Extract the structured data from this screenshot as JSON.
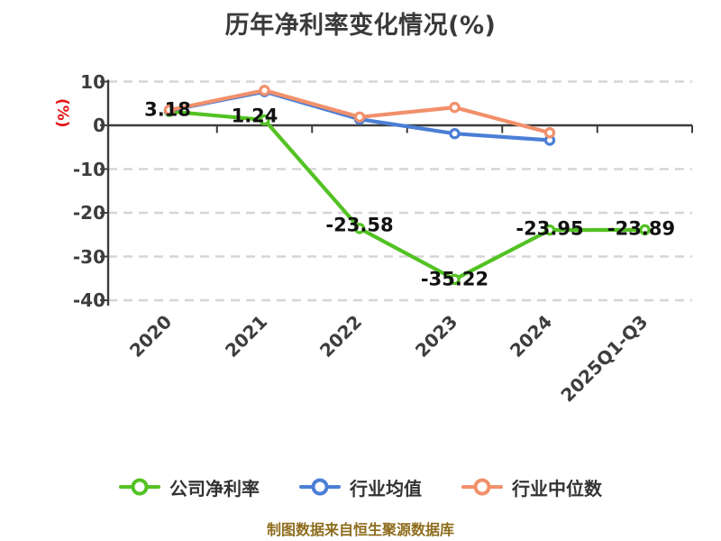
{
  "footer": {
    "text": "制图数据来自恒生聚源数据库"
  },
  "colors": {
    "axis": "#3c3c3c",
    "grid": "#d5d5d5",
    "tick_label": "#3d3d3d",
    "data_label": "#111111",
    "title": "#3a3a3a",
    "ylabel": "#e31515",
    "footer": "#8e6d1d"
  },
  "chart_data": {
    "type": "line",
    "title": "历年净利率变化情况(%)",
    "xlabel": "",
    "ylabel": "(%)",
    "categories": [
      "2020",
      "2021",
      "2022",
      "2023",
      "2024",
      "2025Q1-Q3"
    ],
    "series": [
      {
        "name": "公司净利率",
        "color": "#53c223",
        "values": [
          3.18,
          1.24,
          -23.58,
          -35.22,
          -23.95,
          -23.89
        ],
        "labels": [
          "3.18",
          "1.24",
          "-23.58",
          "-35.22",
          "-23.95",
          "-23.89"
        ]
      },
      {
        "name": "行业均值",
        "color": "#4b7fd6",
        "values": [
          3.4,
          7.7,
          1.4,
          -1.9,
          -3.4
        ]
      },
      {
        "name": "行业中位数",
        "color": "#f2906b",
        "values": [
          3.5,
          8.0,
          1.9,
          4.1,
          -1.7
        ]
      }
    ],
    "yticks": [
      10,
      0,
      -10,
      -20,
      -30,
      -40
    ],
    "ylim": [
      -40,
      10
    ],
    "grid": "horizontal dashed",
    "legend_position": "bottom"
  }
}
